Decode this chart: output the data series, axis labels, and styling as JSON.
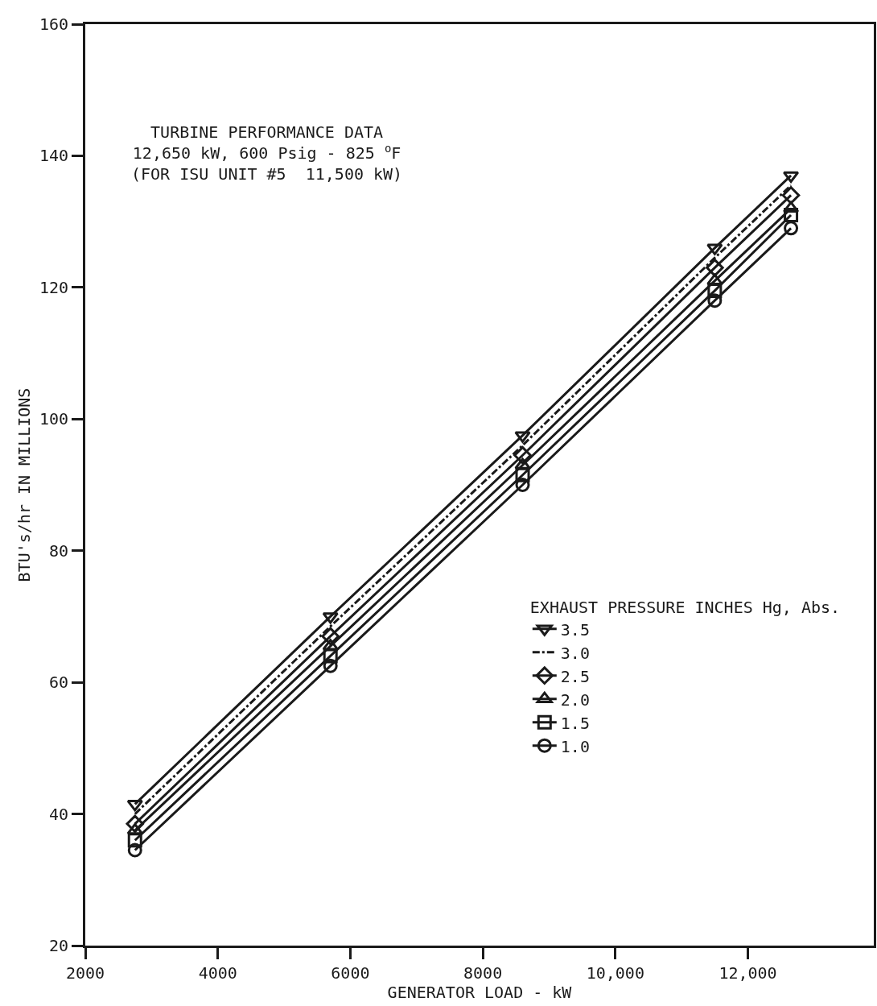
{
  "chart_data": {
    "type": "line",
    "title": "TURBINE PERFORMANCE DATA",
    "subtitle": "12,650 kW, 600 Psig - 825 $^{o}$F\n(FOR ISU UNIT #5  11,500 kW)",
    "xlabel": "GENERATOR LOAD - kW",
    "ylabel": "BTU's/hr IN MILLIONS",
    "legend_title": "EXHAUST PRESSURE INCHES Hg, Abs.",
    "legend": "bottom right",
    "grid": false,
    "x": [
      2750,
      5700,
      8600,
      11500,
      12650
    ],
    "xlim": [
      2000,
      13900
    ],
    "xticks": [
      2000,
      4000,
      6000,
      8000,
      {
        "value": 10000,
        "label": "10,000"
      },
      {
        "value": 12000,
        "label": "12,000"
      }
    ],
    "ylim": [
      20,
      160
    ],
    "yticks": [
      20,
      40,
      60,
      80,
      100,
      120,
      140,
      160
    ],
    "series": [
      {
        "name": "3.5",
        "color": "#1a1a1a",
        "marker": "triangle-down",
        "line_style": "solid",
        "values": [
          41.5,
          70,
          97.5,
          126,
          137
        ]
      },
      {
        "name": "3.0",
        "color": "#1a1a1a",
        "marker": "none",
        "line_style": "dashdot",
        "values": [
          40,
          68.5,
          96,
          124.5,
          135.5
        ]
      },
      {
        "name": "2.5",
        "color": "#1a1a1a",
        "marker": "diamond",
        "line_style": "solid",
        "values": [
          38.5,
          67,
          94.5,
          123,
          134
        ]
      },
      {
        "name": "2.0",
        "color": "#1a1a1a",
        "marker": "triangle",
        "line_style": "solid",
        "values": [
          37.5,
          65.5,
          93,
          121,
          132
        ]
      },
      {
        "name": "1.5",
        "color": "#1a1a1a",
        "marker": "square",
        "line_style": "solid",
        "values": [
          36,
          64,
          91.5,
          119.5,
          131
        ]
      },
      {
        "name": "1.0",
        "color": "#1a1a1a",
        "marker": "circle",
        "line_style": "solid",
        "values": [
          34.5,
          62.5,
          90,
          118,
          129
        ]
      }
    ]
  }
}
